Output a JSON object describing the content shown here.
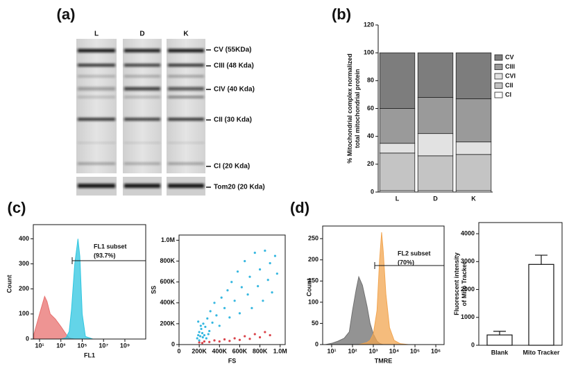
{
  "panels": [
    "(a)",
    "(b)",
    "(c)",
    "(d)"
  ],
  "blot": {
    "lanes": [
      "L",
      "D",
      "K"
    ],
    "bands": [
      "CV (55KDa)",
      "CIII (48 Kda)",
      "CIV (40 Kda)",
      "CII  (30 Kda)",
      "CI  (20 Kda)",
      "Tom20 (20 Kda)"
    ]
  },
  "chart_data": [
    {
      "type": "stacked-bar",
      "ylabel": [
        "% Mitochondrial complex normalized",
        "total mitochondrial protein"
      ],
      "categories": [
        "L",
        "D",
        "K"
      ],
      "series": [
        {
          "name": "CI",
          "color": "#ffffff",
          "values": [
            1,
            1,
            1
          ]
        },
        {
          "name": "CII",
          "color": "#c4c4c4",
          "values": [
            27,
            25,
            26
          ]
        },
        {
          "name": "CVI",
          "color": "#e2e2e2",
          "values": [
            7,
            16,
            9
          ]
        },
        {
          "name": "CIII",
          "color": "#9a9a9a",
          "values": [
            25,
            26,
            31
          ]
        },
        {
          "name": "CV",
          "color": "#7d7d7d",
          "values": [
            40,
            32,
            33
          ]
        }
      ],
      "ylim": [
        0,
        120
      ],
      "yticks": [
        0,
        20,
        40,
        60,
        80,
        100,
        120
      ]
    },
    {
      "type": "histogram-area",
      "xlabel": "FL1",
      "ylabel": "Count",
      "log_x": true,
      "annotation": [
        "FL1 subset",
        "(93.7%)"
      ],
      "x": [
        3,
        10,
        30,
        50,
        100,
        300,
        1000,
        3000,
        6000,
        10000,
        20000,
        40000,
        60000,
        100000,
        200000,
        1000000
      ],
      "series": [
        {
          "color": "#e8706f",
          "values": [
            20,
            100,
            170,
            150,
            100,
            80,
            50,
            20,
            5,
            2,
            0,
            0,
            0,
            0,
            0,
            0
          ]
        },
        {
          "color": "#2fc6e0",
          "values": [
            0,
            0,
            0,
            0,
            0,
            0,
            0,
            5,
            30,
            120,
            300,
            400,
            330,
            100,
            10,
            0
          ]
        }
      ],
      "xlim": [
        2.6,
        90000000000
      ],
      "xticks": [
        {
          "value": 10,
          "label": "10¹"
        },
        {
          "value": 1000,
          "label": "10³"
        },
        {
          "value": 100000,
          "label": "10⁵"
        },
        {
          "value": 10000000,
          "label": "10⁷"
        },
        {
          "value": 1000000000,
          "label": "10⁹"
        }
      ],
      "ylim": [
        0,
        440
      ],
      "yticks": [
        0,
        100,
        200,
        300,
        400
      ]
    },
    {
      "type": "scatter",
      "xlabel": "FS",
      "ylabel": "SS",
      "series": [
        {
          "color": "#35b7e0",
          "x": [
            180000,
            190000,
            200000,
            210000,
            220000,
            230000,
            240000,
            250000,
            260000,
            280000,
            300000,
            310000,
            330000,
            350000,
            370000,
            400000,
            420000,
            450000,
            480000,
            500000,
            520000,
            550000,
            580000,
            600000,
            620000,
            650000,
            680000,
            700000,
            720000,
            750000,
            780000,
            800000,
            830000,
            850000,
            880000,
            900000,
            920000,
            950000,
            970000,
            200000,
            215000,
            235000,
            270000,
            290000,
            190000
          ],
          "values": [
            60000,
            90000,
            120000,
            80000,
            150000,
            110000,
            200000,
            90000,
            170000,
            250000,
            130000,
            320000,
            210000,
            400000,
            280000,
            180000,
            450000,
            350000,
            520000,
            260000,
            600000,
            420000,
            700000,
            300000,
            550000,
            800000,
            480000,
            650000,
            350000,
            880000,
            560000,
            720000,
            420000,
            900000,
            620000,
            780000,
            500000,
            850000,
            680000,
            40000,
            180000,
            70000,
            60000,
            100000,
            220000
          ]
        },
        {
          "color": "#d9434a",
          "x": [
            200000,
            250000,
            300000,
            350000,
            400000,
            450000,
            500000,
            550000,
            600000,
            650000,
            700000,
            750000,
            800000,
            850000,
            900000,
            230000
          ],
          "values": [
            20000,
            30000,
            25000,
            40000,
            30000,
            50000,
            35000,
            60000,
            45000,
            80000,
            55000,
            100000,
            70000,
            120000,
            90000,
            15000
          ]
        }
      ],
      "xlim": [
        0,
        1050000
      ],
      "ylim": [
        0,
        1050000
      ],
      "xticks": [
        0,
        {
          "value": 200000,
          "label": "200K"
        },
        {
          "value": 400000,
          "label": "400K"
        },
        {
          "value": 600000,
          "label": "600K"
        },
        {
          "value": 800000,
          "label": "800K"
        },
        {
          "value": 1000000,
          "label": "1.0M"
        }
      ],
      "yticks": [
        0,
        {
          "value": 200000,
          "label": "200K"
        },
        {
          "value": 400000,
          "label": "400K"
        },
        {
          "value": 600000,
          "label": "600K"
        },
        {
          "value": 800000,
          "label": "800K"
        },
        {
          "value": 1000000,
          "label": "1.0M"
        }
      ]
    },
    {
      "type": "histogram-area",
      "xlabel": "TMRE",
      "ylabel": "Count",
      "log_x": true,
      "annotation": [
        "FL2 subset",
        "(70%)"
      ],
      "x": [
        5,
        10,
        20,
        40,
        70,
        100,
        150,
        200,
        300,
        500,
        700,
        1000,
        1500,
        2000,
        2500,
        3000,
        4000,
        6000,
        10000,
        20000,
        50000
      ],
      "series": [
        {
          "color": "#6f6f6f",
          "values": [
            0,
            3,
            8,
            15,
            30,
            80,
            130,
            160,
            140,
            90,
            50,
            25,
            8,
            3,
            1,
            0,
            0,
            0,
            0,
            0,
            0
          ]
        },
        {
          "color": "#f2a550",
          "values": [
            0,
            0,
            0,
            0,
            0,
            0,
            0,
            0,
            2,
            5,
            10,
            25,
            80,
            200,
            265,
            220,
            120,
            40,
            10,
            2,
            0
          ]
        }
      ],
      "xlim": [
        3.7,
        2500000
      ],
      "xticks": [
        {
          "value": 10,
          "label": "10¹"
        },
        {
          "value": 100,
          "label": "10²"
        },
        {
          "value": 1000,
          "label": "10³"
        },
        {
          "value": 10000,
          "label": "10⁴"
        },
        {
          "value": 100000,
          "label": "10⁵"
        },
        {
          "value": 1000000,
          "label": "10⁶"
        }
      ],
      "ylim": [
        0,
        270
      ],
      "yticks": [
        0,
        50,
        100,
        150,
        200,
        250
      ]
    },
    {
      "type": "bar",
      "ylabel": [
        "Fluorescent intensity",
        "of Mito Tracker"
      ],
      "categories": [
        "Blank",
        "Mito Tracker"
      ],
      "values": [
        370,
        2900
      ],
      "errors": [
        130,
        330
      ],
      "color": "#ffffff",
      "ylim": [
        0,
        4400
      ],
      "yticks": [
        0,
        1000,
        2000,
        3000,
        4000
      ]
    }
  ]
}
